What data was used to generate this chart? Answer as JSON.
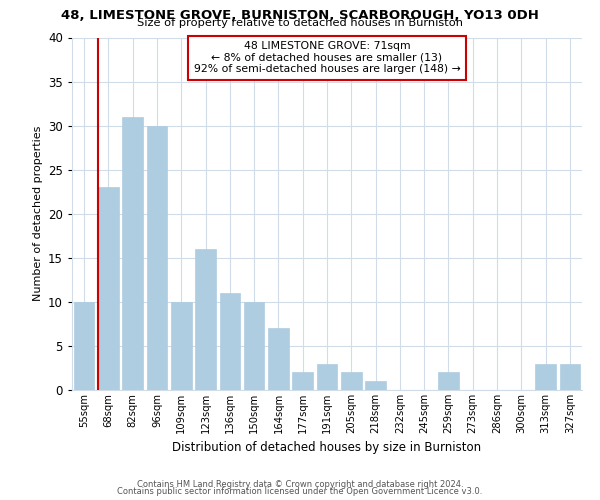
{
  "title": "48, LIMESTONE GROVE, BURNISTON, SCARBOROUGH, YO13 0DH",
  "subtitle": "Size of property relative to detached houses in Burniston",
  "xlabel": "Distribution of detached houses by size in Burniston",
  "ylabel": "Number of detached properties",
  "bar_labels": [
    "55sqm",
    "68sqm",
    "82sqm",
    "96sqm",
    "109sqm",
    "123sqm",
    "136sqm",
    "150sqm",
    "164sqm",
    "177sqm",
    "191sqm",
    "205sqm",
    "218sqm",
    "232sqm",
    "245sqm",
    "259sqm",
    "273sqm",
    "286sqm",
    "300sqm",
    "313sqm",
    "327sqm"
  ],
  "bar_values": [
    10,
    23,
    31,
    30,
    10,
    16,
    11,
    10,
    7,
    2,
    3,
    2,
    1,
    0,
    0,
    2,
    0,
    0,
    0,
    3,
    3
  ],
  "bar_color": "#aecde1",
  "vline_color": "#cc0000",
  "vline_xindex": 1,
  "ylim": [
    0,
    40
  ],
  "yticks": [
    0,
    5,
    10,
    15,
    20,
    25,
    30,
    35,
    40
  ],
  "annotation_title": "48 LIMESTONE GROVE: 71sqm",
  "annotation_line1": "← 8% of detached houses are smaller (13)",
  "annotation_line2": "92% of semi-detached houses are larger (148) →",
  "annotation_box_color": "#ffffff",
  "annotation_box_edge_color": "#cc0000",
  "footer_line1": "Contains HM Land Registry data © Crown copyright and database right 2024.",
  "footer_line2": "Contains public sector information licensed under the Open Government Licence v3.0.",
  "bg_color": "#ffffff",
  "grid_color": "#d0dce8"
}
